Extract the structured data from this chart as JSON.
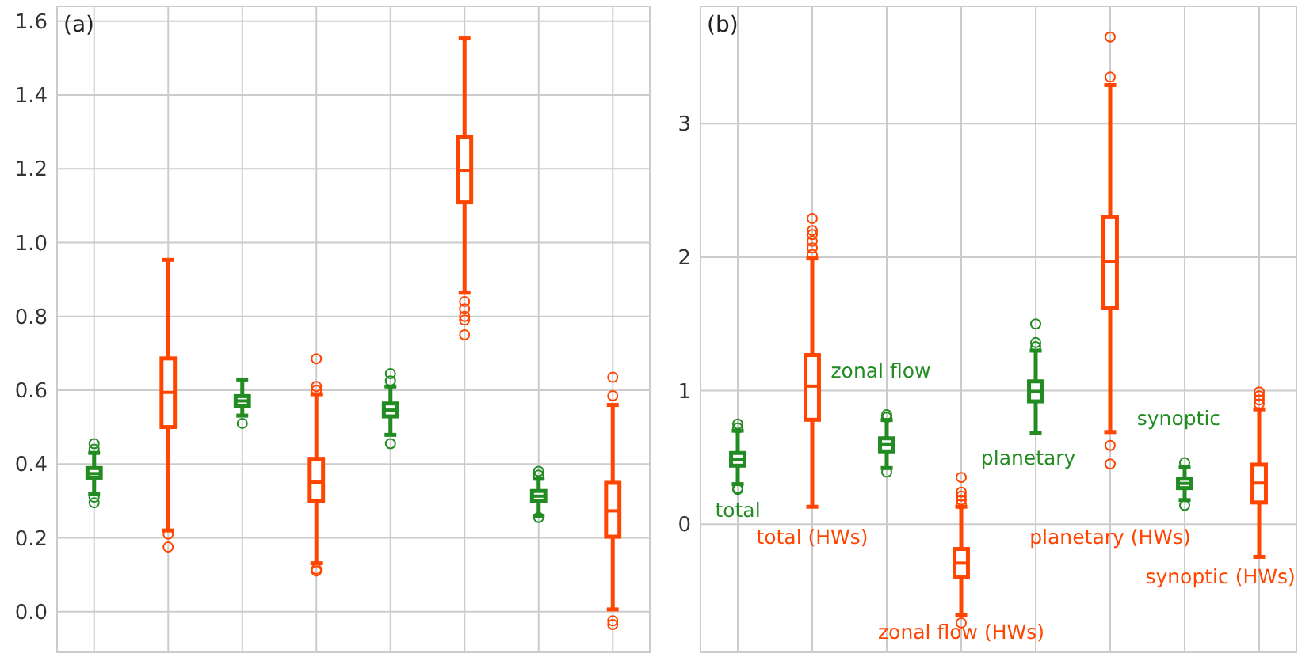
{
  "chart_data": [
    {
      "type": "box",
      "title": "(a)",
      "categories": [
        null,
        null,
        null,
        null,
        null,
        null,
        null,
        null
      ],
      "colors": [
        "#228b22",
        "#ff4500",
        "#228b22",
        "#ff4500",
        "#228b22",
        "#ff4500",
        "#228b22",
        "#ff4500"
      ],
      "boxes": [
        {
          "low": 0.32,
          "q1": 0.363,
          "median": 0.374,
          "q3": 0.389,
          "high": 0.43,
          "outliers": [
            0.44,
            0.455,
            0.31,
            0.295
          ]
        },
        {
          "low": 0.22,
          "q1": 0.5,
          "median": 0.594,
          "q3": 0.686,
          "high": 0.953,
          "outliers": [
            0.21,
            0.175
          ]
        },
        {
          "low": 0.531,
          "q1": 0.557,
          "median": 0.571,
          "q3": 0.584,
          "high": 0.629,
          "outliers": [
            0.51
          ]
        },
        {
          "low": 0.131,
          "q1": 0.299,
          "median": 0.351,
          "q3": 0.414,
          "high": 0.589,
          "outliers": [
            0.6,
            0.61,
            0.685,
            0.115,
            0.11
          ]
        },
        {
          "low": 0.479,
          "q1": 0.529,
          "median": 0.546,
          "q3": 0.564,
          "high": 0.61,
          "outliers": [
            0.625,
            0.645,
            0.455
          ]
        },
        {
          "low": 0.864,
          "q1": 1.109,
          "median": 1.196,
          "q3": 1.286,
          "high": 1.553,
          "outliers": [
            0.84,
            0.82,
            0.8,
            0.79,
            0.75
          ]
        },
        {
          "low": 0.26,
          "q1": 0.299,
          "median": 0.313,
          "q3": 0.327,
          "high": 0.36,
          "outliers": [
            0.37,
            0.38,
            0.255
          ]
        },
        {
          "low": 0.006,
          "q1": 0.203,
          "median": 0.273,
          "q3": 0.349,
          "high": 0.56,
          "outliers": [
            0.585,
            0.635,
            -0.025,
            -0.035
          ]
        }
      ],
      "ylim": [
        -0.11,
        1.64
      ],
      "yticks": [
        {
          "value": 0,
          "label": "0.0"
        },
        0.2,
        0.4,
        0.6,
        0.8,
        {
          "value": 1,
          "label": "1.0"
        },
        1.2,
        1.4,
        1.6
      ],
      "grid": true
    },
    {
      "type": "box",
      "title": "(b)",
      "categories": [
        null,
        null,
        null,
        null,
        null,
        null,
        null,
        null
      ],
      "colors": [
        "#228b22",
        "#ff4500",
        "#228b22",
        "#ff4500",
        "#228b22",
        "#ff4500",
        "#228b22",
        "#ff4500"
      ],
      "boxes": [
        {
          "low": 0.3,
          "q1": 0.438,
          "median": 0.486,
          "q3": 0.533,
          "high": 0.7,
          "outliers": [
            0.72,
            0.75,
            0.27,
            0.26
          ]
        },
        {
          "low": 0.13,
          "q1": 0.782,
          "median": 1.034,
          "q3": 1.267,
          "high": 1.99,
          "outliers": [
            2.02,
            2.07,
            2.12,
            2.17,
            2.2,
            2.29
          ]
        },
        {
          "low": 0.42,
          "q1": 0.545,
          "median": 0.596,
          "q3": 0.643,
          "high": 0.78,
          "outliers": [
            0.8,
            0.82,
            0.39
          ]
        },
        {
          "low": -0.68,
          "q1": -0.395,
          "median": -0.292,
          "q3": -0.186,
          "high": 0.13,
          "outliers": [
            0.15,
            0.18,
            0.21,
            0.24,
            0.35,
            -0.74
          ]
        },
        {
          "low": 0.68,
          "q1": 0.92,
          "median": 0.995,
          "q3": 1.07,
          "high": 1.3,
          "outliers": [
            1.33,
            1.36,
            1.5
          ]
        },
        {
          "low": 0.69,
          "q1": 1.62,
          "median": 1.97,
          "q3": 2.3,
          "high": 3.29,
          "outliers": [
            3.35,
            3.65,
            0.59,
            0.45
          ]
        },
        {
          "low": 0.18,
          "q1": 0.27,
          "median": 0.305,
          "q3": 0.34,
          "high": 0.43,
          "outliers": [
            0.46,
            0.14
          ]
        },
        {
          "low": -0.245,
          "q1": 0.162,
          "median": 0.308,
          "q3": 0.446,
          "high": 0.86,
          "outliers": [
            0.9,
            0.93,
            0.96,
            0.99
          ]
        }
      ],
      "ylim": [
        -0.96,
        3.88
      ],
      "yticks": [
        0,
        1,
        2,
        3
      ],
      "grid": true,
      "annotations": [
        "total",
        "total (HWs)",
        "zonal flow",
        "zonal flow (HWs)",
        "planetary",
        "planetary (HWs)",
        "synoptic",
        "synoptic (HWs)"
      ]
    }
  ]
}
